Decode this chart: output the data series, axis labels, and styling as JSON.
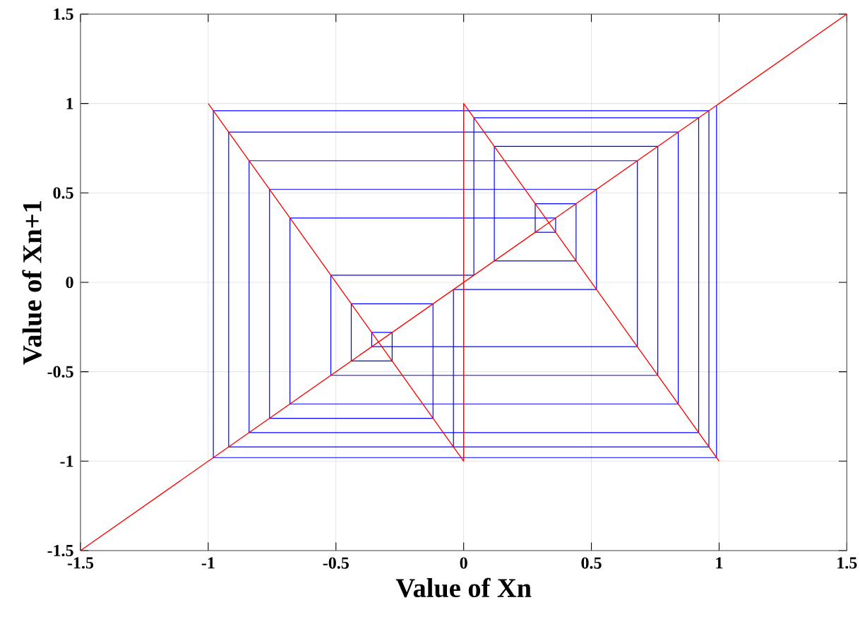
{
  "chart_data": {
    "type": "line",
    "xlabel": "Value of Xn",
    "ylabel": "Value of Xn+1",
    "xlim": [
      -1.5,
      1.5
    ],
    "ylim": [
      -1.5,
      1.5
    ],
    "xticks": [
      -1.5,
      -1,
      -0.5,
      0,
      0.5,
      1,
      1.5
    ],
    "yticks": [
      -1.5,
      -1,
      -0.5,
      0,
      0.5,
      1,
      1.5
    ],
    "grid": true,
    "marker": "none",
    "line_style": "solid",
    "series": [
      {
        "color": "#0000ff",
        "x": [
          0.99,
          0.99,
          -0.98,
          -0.98,
          0.96,
          0.96,
          -0.92,
          -0.92,
          0.84,
          0.84,
          -0.68,
          -0.68,
          0.36,
          0.36,
          0.28,
          0.28,
          0.44,
          0.44,
          0.12,
          0.12,
          0.76,
          0.76,
          -0.52,
          -0.52,
          0.04,
          0.04,
          0.92,
          0.92,
          -0.84,
          -0.84,
          0.68,
          0.68,
          -0.36,
          -0.36,
          -0.28,
          -0.28,
          -0.44,
          -0.44,
          -0.12,
          -0.12,
          -0.76,
          -0.76,
          0.52,
          0.52,
          -0.04,
          -0.04,
          -0.92,
          -0.92
        ],
        "values": [
          0.99,
          -0.98,
          -0.98,
          0.96,
          0.96,
          -0.92,
          -0.92,
          0.84,
          0.84,
          -0.68,
          -0.68,
          0.36,
          0.36,
          0.28,
          0.28,
          0.44,
          0.44,
          0.12,
          0.12,
          0.76,
          0.76,
          -0.52,
          -0.52,
          0.04,
          0.04,
          0.92,
          0.92,
          -0.84,
          -0.84,
          0.68,
          0.68,
          -0.36,
          -0.36,
          -0.28,
          -0.28,
          -0.44,
          -0.44,
          -0.12,
          -0.12,
          -0.76,
          -0.76,
          0.52,
          0.52,
          -0.04,
          -0.04,
          -0.92,
          -0.92,
          0.84
        ]
      },
      {
        "color": "#ff0000",
        "x": [
          -1,
          0,
          0,
          1
        ],
        "values": [
          1,
          -1,
          1,
          -1
        ]
      },
      {
        "color": "#ff0000",
        "x": [
          -1.5,
          1.5
        ],
        "values": [
          -1.5,
          1.5
        ]
      }
    ]
  }
}
